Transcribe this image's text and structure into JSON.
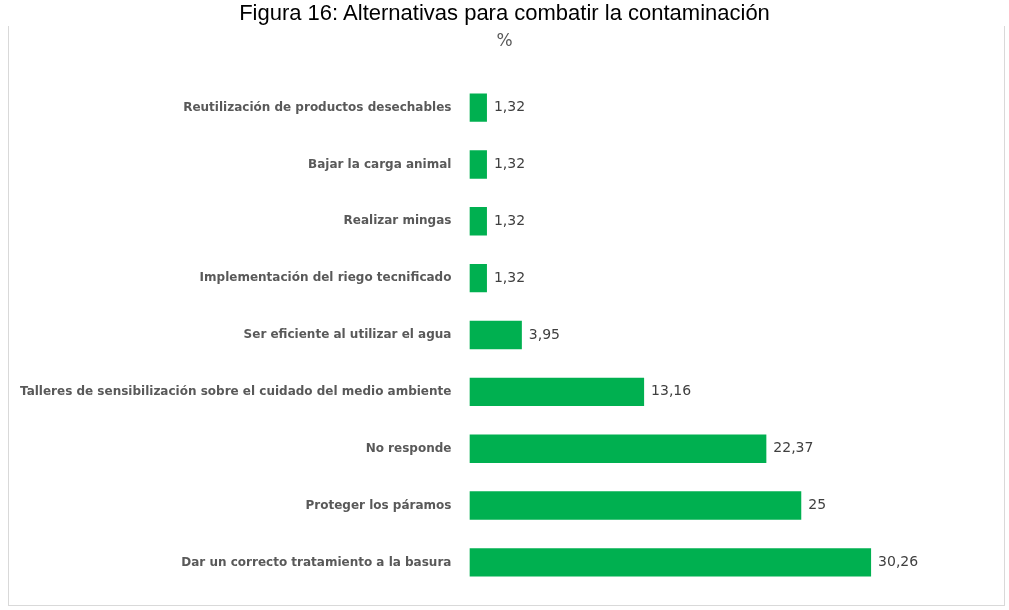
{
  "chart_data": {
    "type": "bar",
    "orientation": "horizontal",
    "title": "Figura 16: Alternativas para combatir la contaminación",
    "subtitle": "%",
    "categories": [
      "Reutilización de productos desechables",
      "Bajar la carga animal",
      "Realizar mingas",
      "Implementación del riego tecnificado",
      "Ser eficiente al utilizar el agua",
      "Talleres de sensibilización sobre el cuidado del medio ambiente",
      "No responde",
      "Proteger los páramos",
      "Dar un correcto tratamiento a la basura"
    ],
    "values": [
      1.32,
      1.32,
      1.32,
      1.32,
      3.95,
      13.16,
      22.37,
      25,
      30.26
    ],
    "value_labels": [
      "1,32",
      "1,32",
      "1,32",
      "1,32",
      "3,95",
      "13,16",
      "22,37",
      "25",
      "30,26"
    ],
    "color": "#00b050",
    "legend": false
  }
}
